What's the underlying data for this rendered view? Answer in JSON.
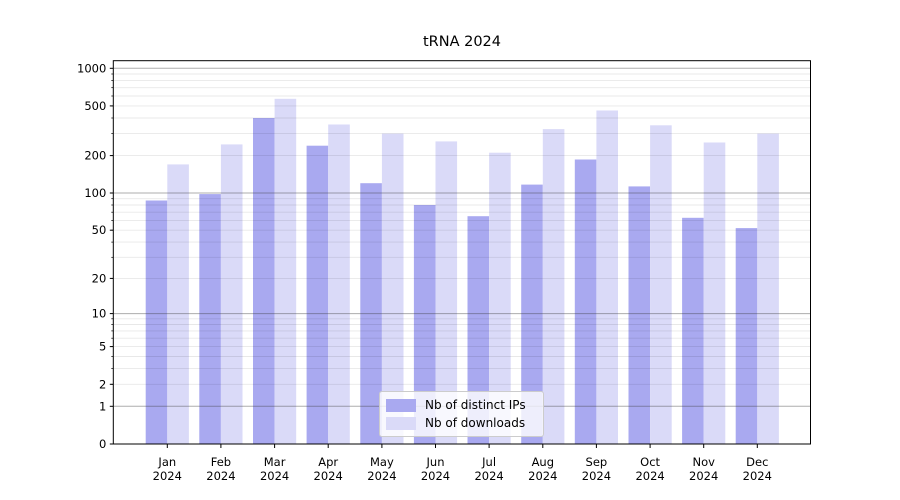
{
  "chart_data": {
    "type": "bar",
    "title": "tRNA 2024",
    "categories": [
      "Jan 2024",
      "Feb 2024",
      "Mar 2024",
      "Apr 2024",
      "May 2024",
      "Jun 2024",
      "Jul 2024",
      "Aug 2024",
      "Sep 2024",
      "Oct 2024",
      "Nov 2024",
      "Dec 2024"
    ],
    "series": [
      {
        "name": "Nb of distinct IPs",
        "color": "#a9a9f0",
        "values": [
          87,
          98,
          400,
          240,
          120,
          80,
          65,
          117,
          186,
          113,
          63,
          52
        ]
      },
      {
        "name": "Nb of downloads",
        "color": "#dadaf8",
        "values": [
          170,
          246,
          570,
          355,
          300,
          260,
          211,
          326,
          460,
          350,
          255,
          300
        ]
      }
    ],
    "y_scale": "log1p",
    "ylim": [
      0,
      1100
    ],
    "y_ticks": [
      0,
      1,
      2,
      5,
      10,
      20,
      50,
      100,
      200,
      500,
      1000
    ],
    "y_major_gridlines": [
      1,
      10,
      100,
      1000
    ],
    "y_minor_gridlines": [
      2,
      3,
      4,
      5,
      6,
      7,
      8,
      9,
      20,
      30,
      40,
      50,
      60,
      70,
      80,
      90,
      200,
      300,
      400,
      500,
      600,
      700,
      800,
      900
    ],
    "grid": true,
    "legend_position": "lower center",
    "colors": {
      "major_grid": "rgba(60,60,60,0.42)",
      "minor_grid": "rgba(0,0,0,0.09)",
      "axis": "#000000",
      "text": "#000000"
    }
  }
}
